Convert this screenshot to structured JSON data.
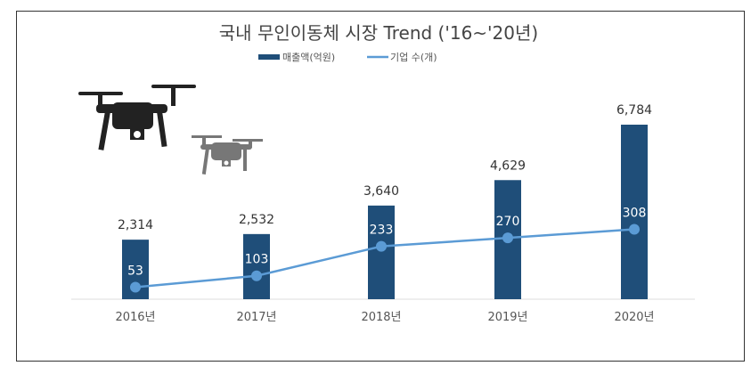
{
  "chart_data": {
    "type": "bar",
    "title": "국내 무인이동체 시장 Trend ('16~'20년)",
    "categories": [
      "2016년",
      "2017년",
      "2018년",
      "2019년",
      "2020년"
    ],
    "series": [
      {
        "name": "매출액(억원)",
        "type": "bar",
        "values": [
          2314,
          2532,
          3640,
          4629,
          6784
        ],
        "labels": [
          "2,314",
          "2,532",
          "3,640",
          "4,629",
          "6,784"
        ],
        "color": "#1f4e79"
      },
      {
        "name": "기업 수(개)",
        "type": "line",
        "values": [
          53,
          103,
          233,
          270,
          308
        ],
        "labels": [
          "53",
          "103",
          "233",
          "270",
          "308"
        ],
        "color": "#5b9bd5"
      }
    ],
    "legend": "top",
    "grid": false,
    "axes_visible": false,
    "decorations": [
      "drone-black",
      "drone-gray"
    ]
  }
}
